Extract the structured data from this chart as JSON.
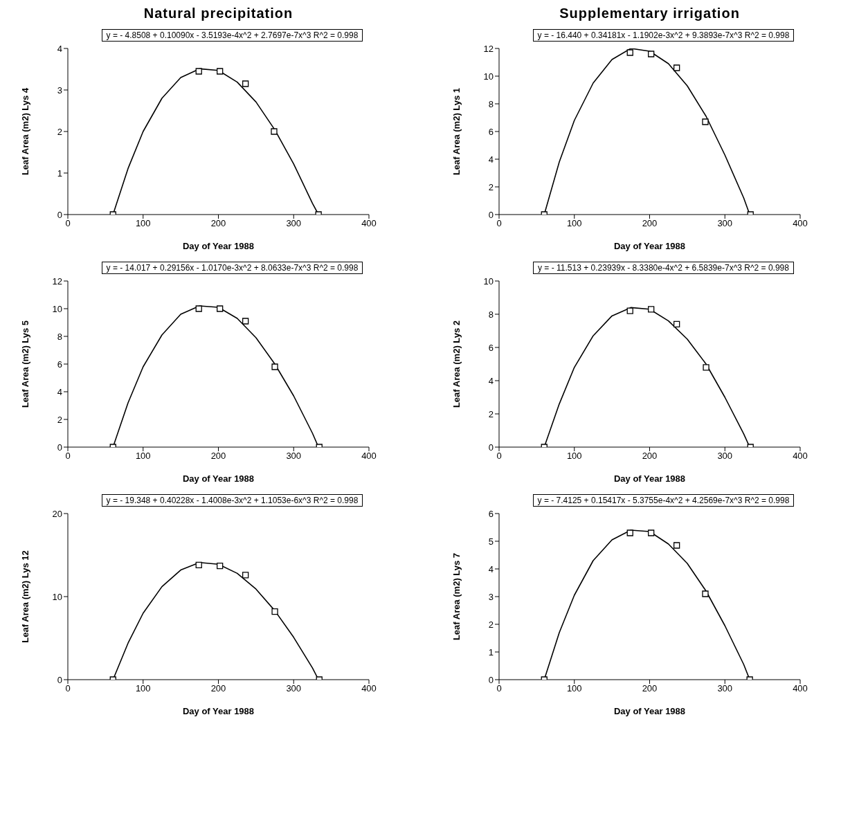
{
  "chart_data": [
    {
      "type": "scatter",
      "title": "Natural precipitation",
      "xlabel": "Day of Year 1988",
      "ylabel": "Leaf Area (m2) Lys 4",
      "xlim": [
        0,
        400
      ],
      "xticks": [
        0,
        100,
        200,
        300,
        400
      ],
      "ylim": [
        0,
        4
      ],
      "yticks": [
        0,
        1,
        2,
        3,
        4
      ],
      "grid": false,
      "annotations": [
        "y = - 4.8508 + 0.10090x - 3.5193e-4x^2 + 2.7697e-7x^3   R^2 = 0.998"
      ],
      "series": [
        {
          "marker": "square",
          "color": "#000000",
          "x": [
            60,
            174,
            202,
            236,
            274,
            333
          ],
          "values": [
            0,
            3.45,
            3.45,
            3.15,
            2.0,
            0
          ]
        },
        {
          "type": "line",
          "marker": "none",
          "line_style": "solid",
          "color": "#000000",
          "x": [
            60,
            80,
            100,
            125,
            150,
            175,
            200,
            225,
            250,
            275,
            300,
            325,
            333
          ],
          "values": [
            0,
            1.11,
            2.0,
            2.8,
            3.3,
            3.51,
            3.47,
            3.19,
            2.71,
            2.04,
            1.22,
            0.27,
            0
          ]
        }
      ]
    },
    {
      "type": "scatter",
      "title": "Supplementary irrigation",
      "xlabel": "Day of Year 1988",
      "ylabel": "Leaf Area (m2) Lys 1",
      "xlim": [
        0,
        400
      ],
      "xticks": [
        0,
        100,
        200,
        300,
        400
      ],
      "ylim": [
        0,
        12
      ],
      "yticks": [
        0,
        2,
        4,
        6,
        8,
        10,
        12
      ],
      "grid": false,
      "annotations": [
        "y = - 16.440 + 0.34181x - 1.1902e-3x^2 + 9.3893e-7x^3   R^2 = 0.998"
      ],
      "series": [
        {
          "marker": "square",
          "color": "#000000",
          "x": [
            60,
            174,
            202,
            236,
            274,
            334
          ],
          "values": [
            0,
            11.7,
            11.6,
            10.6,
            6.7,
            0
          ]
        },
        {
          "type": "line",
          "marker": "none",
          "line_style": "solid",
          "color": "#000000",
          "x": [
            60,
            80,
            100,
            125,
            150,
            175,
            200,
            225,
            250,
            275,
            300,
            325,
            333
          ],
          "values": [
            0,
            3.8,
            6.8,
            9.5,
            11.2,
            12.0,
            11.8,
            10.9,
            9.3,
            7.1,
            4.3,
            1.2,
            0
          ]
        }
      ]
    },
    {
      "type": "scatter",
      "xlabel": "Day of Year 1988",
      "ylabel": "Leaf Area (m2) Lys 5",
      "xlim": [
        0,
        400
      ],
      "xticks": [
        0,
        100,
        200,
        300,
        400
      ],
      "ylim": [
        0,
        12
      ],
      "yticks": [
        0,
        2,
        4,
        6,
        8,
        10,
        12
      ],
      "grid": false,
      "annotations": [
        "y = - 14.017 + 0.29156x - 1.0170e-3x^2 + 8.0633e-7x^3   R^2 = 0.998"
      ],
      "series": [
        {
          "marker": "square",
          "color": "#000000",
          "x": [
            60,
            174,
            202,
            236,
            275,
            334
          ],
          "values": [
            0,
            10.0,
            10.0,
            9.1,
            5.8,
            0
          ]
        },
        {
          "type": "line",
          "marker": "none",
          "line_style": "solid",
          "color": "#000000",
          "x": [
            60,
            80,
            100,
            125,
            150,
            175,
            200,
            225,
            250,
            275,
            300,
            325,
            333
          ],
          "values": [
            0,
            3.2,
            5.8,
            8.1,
            9.6,
            10.2,
            10.1,
            9.3,
            7.9,
            6.0,
            3.7,
            1.0,
            0
          ]
        }
      ]
    },
    {
      "type": "scatter",
      "xlabel": "Day of Year 1988",
      "ylabel": "Leaf Area (m2) Lys 2",
      "xlim": [
        0,
        400
      ],
      "xticks": [
        0,
        100,
        200,
        300,
        400
      ],
      "ylim": [
        0,
        10
      ],
      "yticks": [
        0,
        2,
        4,
        6,
        8,
        10
      ],
      "grid": false,
      "annotations": [
        "y = - 11.513 + 0.23939x - 8.3380e-4x^2 + 6.5839e-7x^3   R^2 = 0.998"
      ],
      "series": [
        {
          "marker": "square",
          "color": "#000000",
          "x": [
            60,
            174,
            202,
            236,
            275,
            334
          ],
          "values": [
            0,
            8.2,
            8.3,
            7.4,
            4.8,
            0
          ]
        },
        {
          "type": "line",
          "marker": "none",
          "line_style": "solid",
          "color": "#000000",
          "x": [
            60,
            80,
            100,
            125,
            150,
            175,
            200,
            225,
            250,
            275,
            300,
            325,
            333
          ],
          "values": [
            0,
            2.6,
            4.8,
            6.7,
            7.9,
            8.4,
            8.3,
            7.6,
            6.5,
            5.0,
            3.0,
            0.8,
            0
          ]
        }
      ]
    },
    {
      "type": "scatter",
      "xlabel": "Day of Year 1988",
      "ylabel": "Leaf Area (m2) Lys 12",
      "xlim": [
        0,
        400
      ],
      "xticks": [
        0,
        100,
        200,
        300,
        400
      ],
      "ylim": [
        0,
        20
      ],
      "yticks": [
        0,
        10,
        20
      ],
      "grid": false,
      "annotations": [
        "y = - 19.348 + 0.40228x - 1.4008e-3x^2 + 1.1053e-6x^3   R^2 = 0.998"
      ],
      "series": [
        {
          "marker": "square",
          "color": "#000000",
          "x": [
            60,
            174,
            202,
            236,
            275,
            334
          ],
          "values": [
            0,
            13.8,
            13.7,
            12.6,
            8.2,
            0
          ]
        },
        {
          "type": "line",
          "marker": "none",
          "line_style": "solid",
          "color": "#000000",
          "x": [
            60,
            80,
            100,
            125,
            150,
            175,
            200,
            225,
            250,
            275,
            300,
            325,
            333
          ],
          "values": [
            0,
            4.4,
            8.0,
            11.2,
            13.2,
            14.1,
            13.9,
            12.8,
            10.9,
            8.3,
            5.1,
            1.4,
            0
          ]
        }
      ]
    },
    {
      "type": "scatter",
      "xlabel": "Day of Year 1988",
      "ylabel": "Leaf Area (m2) Lys 7",
      "xlim": [
        0,
        400
      ],
      "xticks": [
        0,
        100,
        200,
        300,
        400
      ],
      "ylim": [
        0,
        6
      ],
      "yticks": [
        0,
        1,
        2,
        3,
        4,
        5,
        6
      ],
      "grid": false,
      "annotations": [
        "y = - 7.4125 + 0.15417x - 5.3755e-4x^2 + 4.2569e-7x^3   R^2 = 0.998"
      ],
      "series": [
        {
          "marker": "square",
          "color": "#000000",
          "x": [
            60,
            174,
            202,
            236,
            274,
            333
          ],
          "values": [
            0,
            5.3,
            5.3,
            4.85,
            3.1,
            0
          ]
        },
        {
          "type": "line",
          "marker": "none",
          "line_style": "solid",
          "color": "#000000",
          "x": [
            60,
            80,
            100,
            125,
            150,
            175,
            200,
            225,
            250,
            275,
            300,
            325,
            333
          ],
          "values": [
            0,
            1.7,
            3.05,
            4.3,
            5.05,
            5.4,
            5.35,
            4.9,
            4.2,
            3.2,
            1.95,
            0.55,
            0
          ]
        }
      ]
    }
  ]
}
